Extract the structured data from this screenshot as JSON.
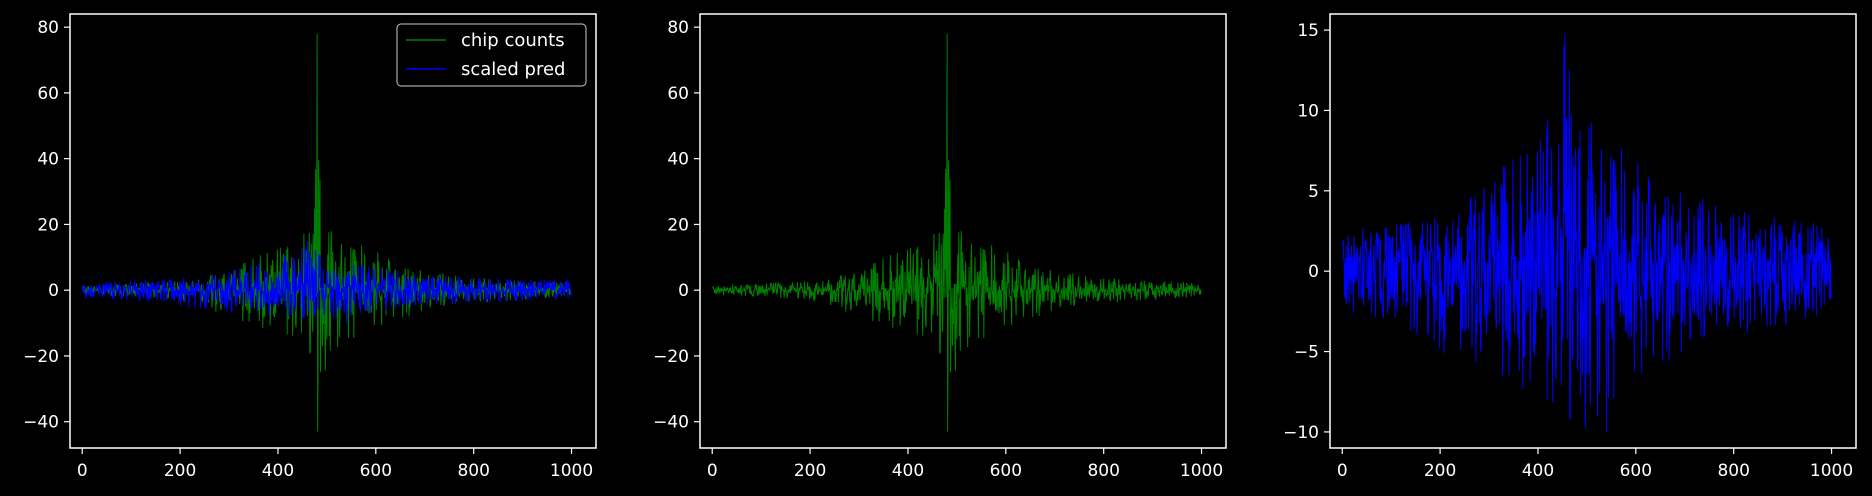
{
  "figure": {
    "background": "#000000",
    "axes_color": "#ffffff"
  },
  "chart_data": [
    {
      "type": "line",
      "title": "",
      "xlabel": "",
      "ylabel": "",
      "xlim": [
        -25,
        1050
      ],
      "ylim": [
        -48,
        84
      ],
      "xticks": [
        0,
        200,
        400,
        600,
        800,
        1000
      ],
      "yticks": [
        -40,
        -20,
        0,
        20,
        40,
        60,
        80
      ],
      "legend": {
        "position": "top-right",
        "entries": [
          "chip counts",
          "scaled pred"
        ]
      },
      "series": [
        {
          "name": "chip counts",
          "color": "#008000",
          "n_points": 1000,
          "style": "mirrored_noise",
          "envelope_x": [
            0,
            100,
            200,
            300,
            380,
            440,
            470,
            480,
            490,
            520,
            600,
            700,
            800,
            900,
            1000
          ],
          "envelope_upper": [
            1.5,
            2,
            3,
            6,
            12,
            16,
            20,
            78,
            20,
            17,
            12,
            6,
            4,
            3,
            2.5
          ],
          "envelope_lower": [
            -1.5,
            -2,
            -3,
            -8,
            -12,
            -15,
            -20,
            -43,
            -27,
            -18,
            -12,
            -6,
            -4,
            -3,
            -2
          ],
          "peak_max": {
            "x": 480,
            "y": 78
          },
          "peak_min": {
            "x": 480,
            "y": -43
          }
        },
        {
          "name": "scaled pred",
          "color": "#0000ff",
          "n_points": 1000,
          "style": "mirrored_noise",
          "envelope_x": [
            0,
            100,
            200,
            300,
            400,
            460,
            500,
            600,
            700,
            800,
            900,
            1000
          ],
          "envelope_upper": [
            2.5,
            3,
            3.5,
            6,
            10,
            15,
            9,
            7,
            5,
            4,
            3.5,
            3
          ],
          "envelope_lower": [
            -2.5,
            -3,
            -5,
            -7,
            -8,
            -9,
            -10,
            -7,
            -5,
            -4,
            -3.5,
            -2.5
          ],
          "peak_max": {
            "x": 460,
            "y": 15
          },
          "peak_min": {
            "x": 540,
            "y": -10
          }
        }
      ]
    },
    {
      "type": "line",
      "title": "",
      "xlabel": "",
      "ylabel": "",
      "xlim": [
        -25,
        1050
      ],
      "ylim": [
        -48,
        84
      ],
      "xticks": [
        0,
        200,
        400,
        600,
        800,
        1000
      ],
      "yticks": [
        -40,
        -20,
        0,
        20,
        40,
        60,
        80
      ],
      "series": [
        {
          "color": "#008000",
          "n_points": 1000,
          "style": "mirrored_noise",
          "envelope_x": [
            0,
            100,
            200,
            300,
            380,
            440,
            470,
            480,
            490,
            520,
            600,
            700,
            800,
            900,
            1000
          ],
          "envelope_upper": [
            1.5,
            2,
            3,
            6,
            12,
            16,
            20,
            78,
            20,
            17,
            12,
            6,
            4,
            3,
            2.5
          ],
          "envelope_lower": [
            -1.5,
            -2,
            -3,
            -8,
            -12,
            -15,
            -20,
            -43,
            -27,
            -18,
            -12,
            -6,
            -4,
            -3,
            -2
          ],
          "peak_max": {
            "x": 480,
            "y": 78
          },
          "peak_min": {
            "x": 480,
            "y": -43
          }
        }
      ]
    },
    {
      "type": "line",
      "title": "",
      "xlabel": "",
      "ylabel": "",
      "xlim": [
        -25,
        1050
      ],
      "ylim": [
        -11,
        16
      ],
      "xticks": [
        0,
        200,
        400,
        600,
        800,
        1000
      ],
      "yticks": [
        -10,
        -5,
        0,
        5,
        10,
        15
      ],
      "series": [
        {
          "color": "#0000ff",
          "n_points": 1000,
          "style": "split_noise",
          "base_upper": 0.5,
          "base_lower": -0.5,
          "envelope_x": [
            0,
            100,
            200,
            300,
            400,
            455,
            500,
            600,
            700,
            800,
            900,
            1000
          ],
          "envelope_upper": [
            2.5,
            3,
            3.5,
            6,
            8,
            14.8,
            9.5,
            7,
            5,
            4,
            3.5,
            3
          ],
          "envelope_lower": [
            -2.5,
            -3,
            -5,
            -6,
            -8,
            -9,
            -10,
            -7,
            -5,
            -4,
            -3.5,
            -2.5
          ],
          "peak_max": {
            "x": 455,
            "y": 14.8
          },
          "peak_min": {
            "x": 540,
            "y": -10
          }
        }
      ]
    }
  ]
}
